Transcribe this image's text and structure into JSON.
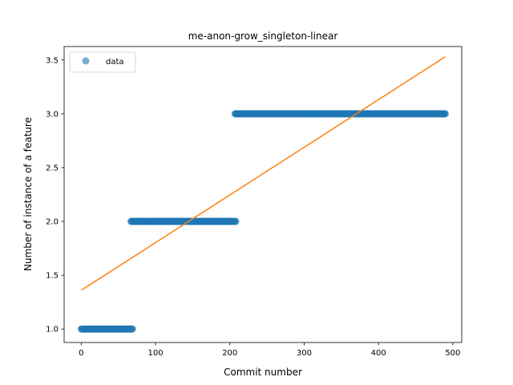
{
  "chart_data": {
    "type": "scatter",
    "title": "me-anon-grow_singleton-linear",
    "xlabel": "Commit number",
    "ylabel": "Number of instance of a feature",
    "xlim": [
      -23,
      512
    ],
    "ylim": [
      0.875,
      3.625
    ],
    "xticks": [
      0,
      100,
      200,
      300,
      400,
      500
    ],
    "yticks": [
      1.0,
      1.5,
      2.0,
      2.5,
      3.0,
      3.5
    ],
    "ytick_labels": [
      "1.0",
      "1.5",
      "2.0",
      "2.5",
      "3.0",
      "3.5"
    ],
    "legend": {
      "position": "top-left",
      "entries": [
        "data"
      ]
    },
    "grid": false,
    "series": [
      {
        "name": "data",
        "kind": "points",
        "color": "#1f77b4",
        "segments": [
          {
            "x_start": 0,
            "x_end": 69,
            "y": 1.0
          },
          {
            "x_start": 67,
            "x_end": 208,
            "y": 2.0
          },
          {
            "x_start": 207,
            "x_end": 490,
            "y": 3.0
          }
        ]
      },
      {
        "kind": "fit-line",
        "color": "#ff7f0e",
        "x": [
          0,
          490
        ],
        "y": [
          1.36,
          3.53
        ]
      }
    ]
  }
}
